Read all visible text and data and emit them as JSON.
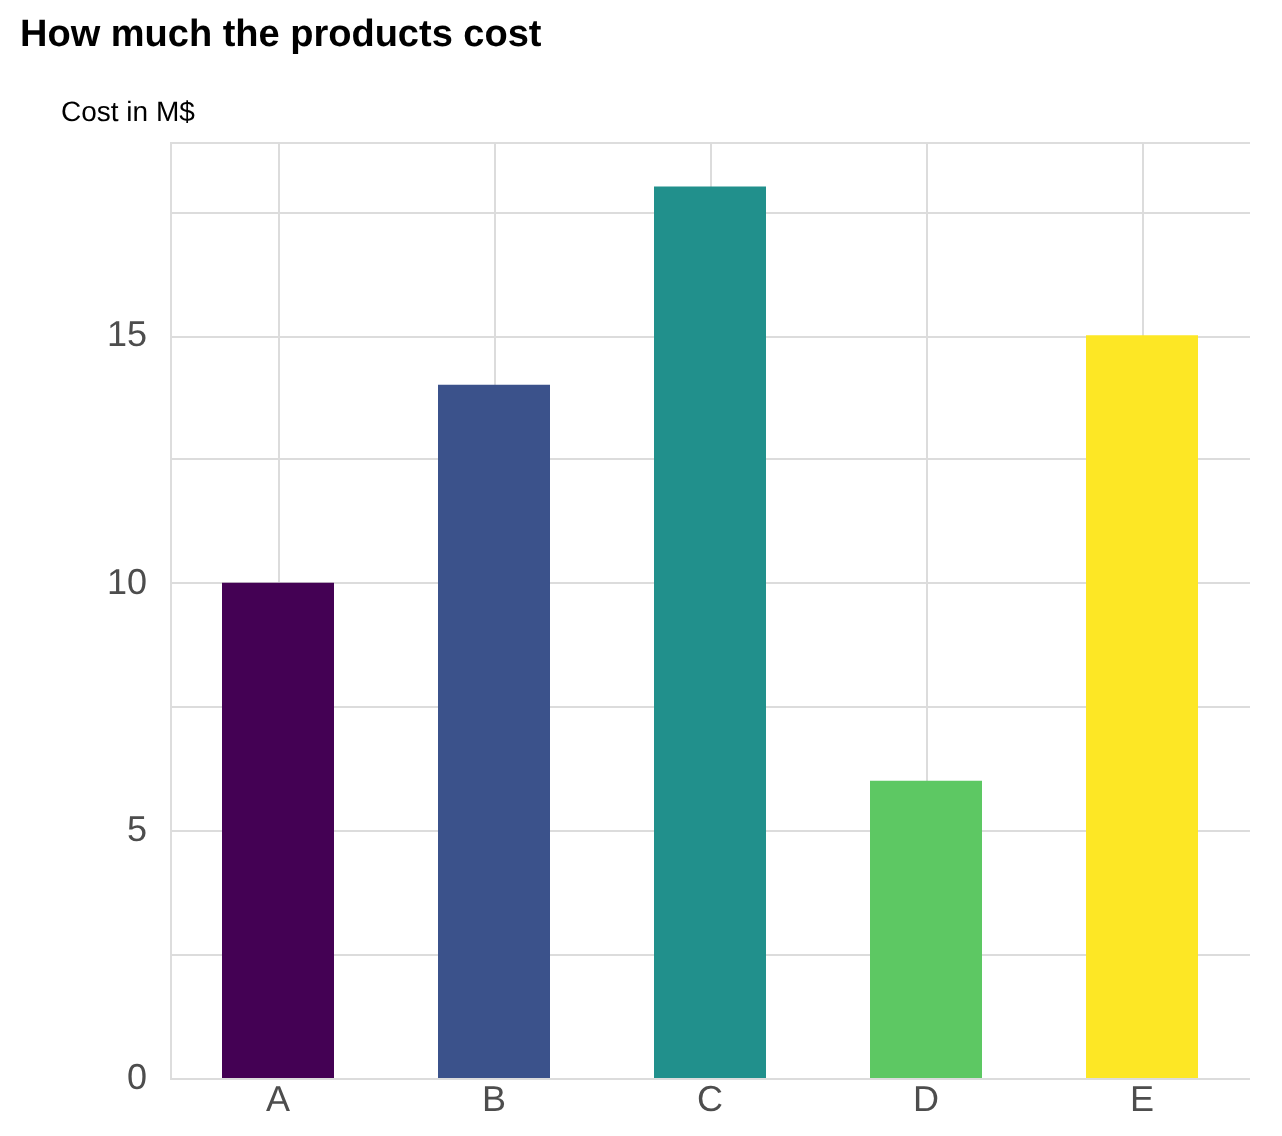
{
  "chart_data": {
    "type": "bar",
    "title": "How much the products cost",
    "ylabel": "Cost in M$",
    "categories": [
      "A",
      "B",
      "C",
      "D",
      "E"
    ],
    "values": [
      10,
      14,
      18,
      6,
      15
    ],
    "colors": [
      "#440154",
      "#3b528b",
      "#21908c",
      "#5dc863",
      "#fde725"
    ],
    "ylim": [
      0,
      18.9
    ],
    "yticks": [
      0,
      {
        "value": 2.5,
        "label": null
      },
      5,
      {
        "value": 7.5,
        "label": null
      },
      10,
      {
        "value": 12.5,
        "label": null
      },
      15,
      {
        "value": 17.5,
        "label": null
      }
    ],
    "grid": true
  }
}
